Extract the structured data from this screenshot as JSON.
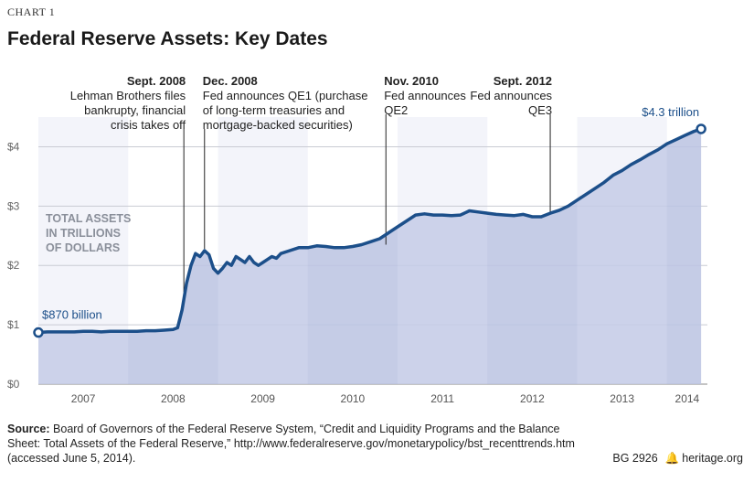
{
  "header": {
    "kicker": "CHART 1",
    "title": "Federal Reserve Assets: Key Dates"
  },
  "chart_data": {
    "type": "area",
    "title": "Federal Reserve Assets: Key Dates",
    "ylabel_lines": [
      "TOTAL ASSETS",
      "IN TRILLIONS",
      "OF DOLLARS"
    ],
    "xlabel": "",
    "ylim": [
      0,
      4.5
    ],
    "y_ticks": [
      "$0",
      "$1",
      "$2",
      "$3",
      "$4"
    ],
    "y_tick_values": [
      0,
      1,
      2,
      3,
      4
    ],
    "x_ticks": [
      "2007",
      "2008",
      "2009",
      "2010",
      "2011",
      "2012",
      "2013",
      "2014"
    ],
    "xlim": [
      2007.0,
      2014.45
    ],
    "grid": true,
    "line_color": "#1c4f8a",
    "fill_color": "#c4cbe6",
    "band_color": "#b8c0df",
    "series": [
      {
        "x": [
          2007.0,
          2007.1,
          2007.2,
          2007.3,
          2007.4,
          2007.5,
          2007.6,
          2007.7,
          2007.8,
          2007.9,
          2008.0,
          2008.1,
          2008.2,
          2008.3,
          2008.4,
          2008.5,
          2008.55,
          2008.6,
          2008.65,
          2008.7,
          2008.75,
          2008.8,
          2008.85,
          2008.9,
          2008.95,
          2009.0,
          2009.05,
          2009.1,
          2009.15,
          2009.2,
          2009.25,
          2009.3,
          2009.35,
          2009.4,
          2009.45,
          2009.5,
          2009.55,
          2009.6,
          2009.65,
          2009.7,
          2009.8,
          2009.9,
          2010.0,
          2010.1,
          2010.2,
          2010.3,
          2010.4,
          2010.5,
          2010.6,
          2010.7,
          2010.8,
          2010.9,
          2011.0,
          2011.1,
          2011.2,
          2011.3,
          2011.4,
          2011.5,
          2011.6,
          2011.7,
          2011.8,
          2011.9,
          2012.0,
          2012.1,
          2012.2,
          2012.3,
          2012.4,
          2012.5,
          2012.6,
          2012.7,
          2012.8,
          2012.9,
          2013.0,
          2013.1,
          2013.2,
          2013.3,
          2013.4,
          2013.5,
          2013.6,
          2013.7,
          2013.8,
          2013.9,
          2014.0,
          2014.1,
          2014.2,
          2014.3,
          2014.38
        ],
        "values": [
          0.87,
          0.88,
          0.88,
          0.88,
          0.88,
          0.89,
          0.89,
          0.88,
          0.89,
          0.89,
          0.89,
          0.89,
          0.9,
          0.9,
          0.91,
          0.92,
          0.95,
          1.25,
          1.7,
          2.0,
          2.2,
          2.15,
          2.25,
          2.18,
          1.95,
          1.87,
          1.95,
          2.05,
          2.0,
          2.15,
          2.1,
          2.05,
          2.15,
          2.05,
          2.0,
          2.05,
          2.1,
          2.15,
          2.12,
          2.2,
          2.25,
          2.3,
          2.3,
          2.33,
          2.32,
          2.3,
          2.3,
          2.32,
          2.35,
          2.4,
          2.45,
          2.55,
          2.65,
          2.75,
          2.85,
          2.87,
          2.85,
          2.85,
          2.84,
          2.85,
          2.92,
          2.9,
          2.88,
          2.86,
          2.85,
          2.84,
          2.86,
          2.82,
          2.82,
          2.88,
          2.93,
          3.0,
          3.1,
          3.2,
          3.3,
          3.4,
          3.52,
          3.6,
          3.7,
          3.78,
          3.87,
          3.95,
          4.05,
          4.12,
          4.19,
          4.26,
          4.3
        ]
      }
    ],
    "annotations": [
      {
        "x": 2008.62,
        "y": 1.55,
        "align": "end",
        "label_date": "Sept. 2008",
        "lines": [
          "Lehman Brothers files",
          "bankrupty, financial",
          "crisis takes off"
        ]
      },
      {
        "x": 2008.85,
        "y": 2.28,
        "align": "start",
        "label_date": "Dec. 2008",
        "lines": [
          "Fed announces QE1 (purchase",
          "of long-term treasuries and",
          "mortgage-backed securities)"
        ]
      },
      {
        "x": 2010.87,
        "y": 2.35,
        "align": "start",
        "label_date": "Nov. 2010",
        "lines": [
          "Fed announces",
          "QE2"
        ]
      },
      {
        "x": 2012.7,
        "y": 2.88,
        "align": "end",
        "label_date": "Sept. 2012",
        "lines": [
          "Fed announces",
          "QE3"
        ]
      }
    ],
    "start_label": "$870 billion",
    "end_label": "$4.3 trillion"
  },
  "footer": {
    "source_label": "Source:",
    "source_text": "Board of Governors of the Federal Reserve System, “Credit and Liquidity Programs and the Balance Sheet: Total Assets of the Federal Reserve,” http://www.federalreserve.gov/monetarypolicy/bst_recenttrends.htm (accessed June 5, 2014).",
    "doc_id": "BG 2926",
    "site": "heritage.org"
  }
}
